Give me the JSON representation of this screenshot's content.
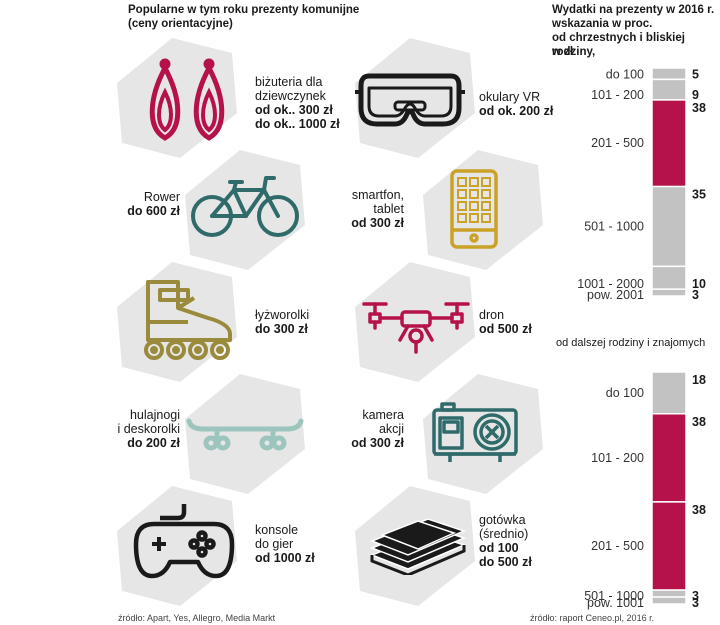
{
  "left": {
    "title": "Popularne w tym roku prezenty komunijne",
    "subtitle": "(ceny orientacyjne)",
    "products": [
      {
        "id": "earrings",
        "name_lines": [
          "biżuteria dla",
          "dziewczynek"
        ],
        "price_lines": [
          "od ok.. 300 zł",
          "do ok.. 1000 zł"
        ],
        "icon": "earrings-icon",
        "color": "#b5124b"
      },
      {
        "id": "vr",
        "name_lines": [
          "okulary VR"
        ],
        "price_lines": [
          "od ok. 200 zł"
        ],
        "icon": "vr-goggles-icon",
        "color": "#1a1a1a"
      },
      {
        "id": "bike",
        "name_lines": [
          "Rower"
        ],
        "price_lines": [
          "do 600 zł"
        ],
        "icon": "bicycle-icon",
        "color": "#2f6b6b"
      },
      {
        "id": "phone",
        "name_lines": [
          "smartfon,",
          "tablet"
        ],
        "price_lines": [
          "od 300 zł"
        ],
        "icon": "smartphone-icon",
        "color": "#c9a227"
      },
      {
        "id": "skates",
        "name_lines": [
          "łyżworolki"
        ],
        "price_lines": [
          "do 300 zł"
        ],
        "icon": "inline-skates-icon",
        "color": "#9a8a3c"
      },
      {
        "id": "drone",
        "name_lines": [
          "dron"
        ],
        "price_lines": [
          "od 500 zł"
        ],
        "icon": "drone-icon",
        "color": "#b5124b"
      },
      {
        "id": "board",
        "name_lines": [
          "hulajnogi",
          "i deskorolki"
        ],
        "price_lines": [
          "do 200 zł"
        ],
        "icon": "skateboard-icon",
        "color": "#9cc5bd"
      },
      {
        "id": "camera",
        "name_lines": [
          "kamera",
          "akcji"
        ],
        "price_lines": [
          "od 300 zł"
        ],
        "icon": "action-camera-icon",
        "color": "#2f6b6b"
      },
      {
        "id": "console",
        "name_lines": [
          "konsole",
          "do gier"
        ],
        "price_lines": [
          "od 1000 zł"
        ],
        "icon": "gamepad-icon",
        "color": "#1a1a1a"
      },
      {
        "id": "cash",
        "name_lines": [
          "gotówka",
          "(średnio)"
        ],
        "price_lines": [
          "od 100",
          "do 500 zł"
        ],
        "icon": "cash-stack-icon",
        "color": "#1a1a1a"
      }
    ],
    "source": "źródło: Apart, Yes, Allegro, Media Markt"
  },
  "right": {
    "source": "źródło: raport Ceneo.pl, 2016 r."
  },
  "chart_data": [
    {
      "type": "bar",
      "stacked": true,
      "title": "Wydatki na prezenty w 2016 r. wskazania w proc. od chrzestnych i bliskiej rodziny, w zł",
      "title_lines": [
        "Wydatki na prezenty w 2016 r.",
        "wskazania w proc.",
        "od chrzestnych i bliskiej rodziny,",
        "w zł"
      ],
      "categories": [
        "do 100",
        "101 - 200",
        "201 - 500",
        "501 - 1000",
        "1001 - 2000",
        "pow. 2001"
      ],
      "values": [
        5,
        9,
        38,
        35,
        10,
        3
      ],
      "highlight": "201 - 500",
      "colors": {
        "base": "#c2c2c2",
        "highlight": "#b5124b"
      }
    },
    {
      "type": "bar",
      "stacked": true,
      "title": "od dalszej rodziny i znajomych",
      "categories": [
        "do 100",
        "101 - 200",
        "201 - 500",
        "501 - 1000",
        "pow. 1001"
      ],
      "values": [
        18,
        38,
        38,
        3,
        3
      ],
      "highlight": [
        "101 - 200",
        "201 - 500"
      ],
      "colors": {
        "base": "#c2c2c2",
        "highlight": "#b5124b"
      }
    }
  ]
}
